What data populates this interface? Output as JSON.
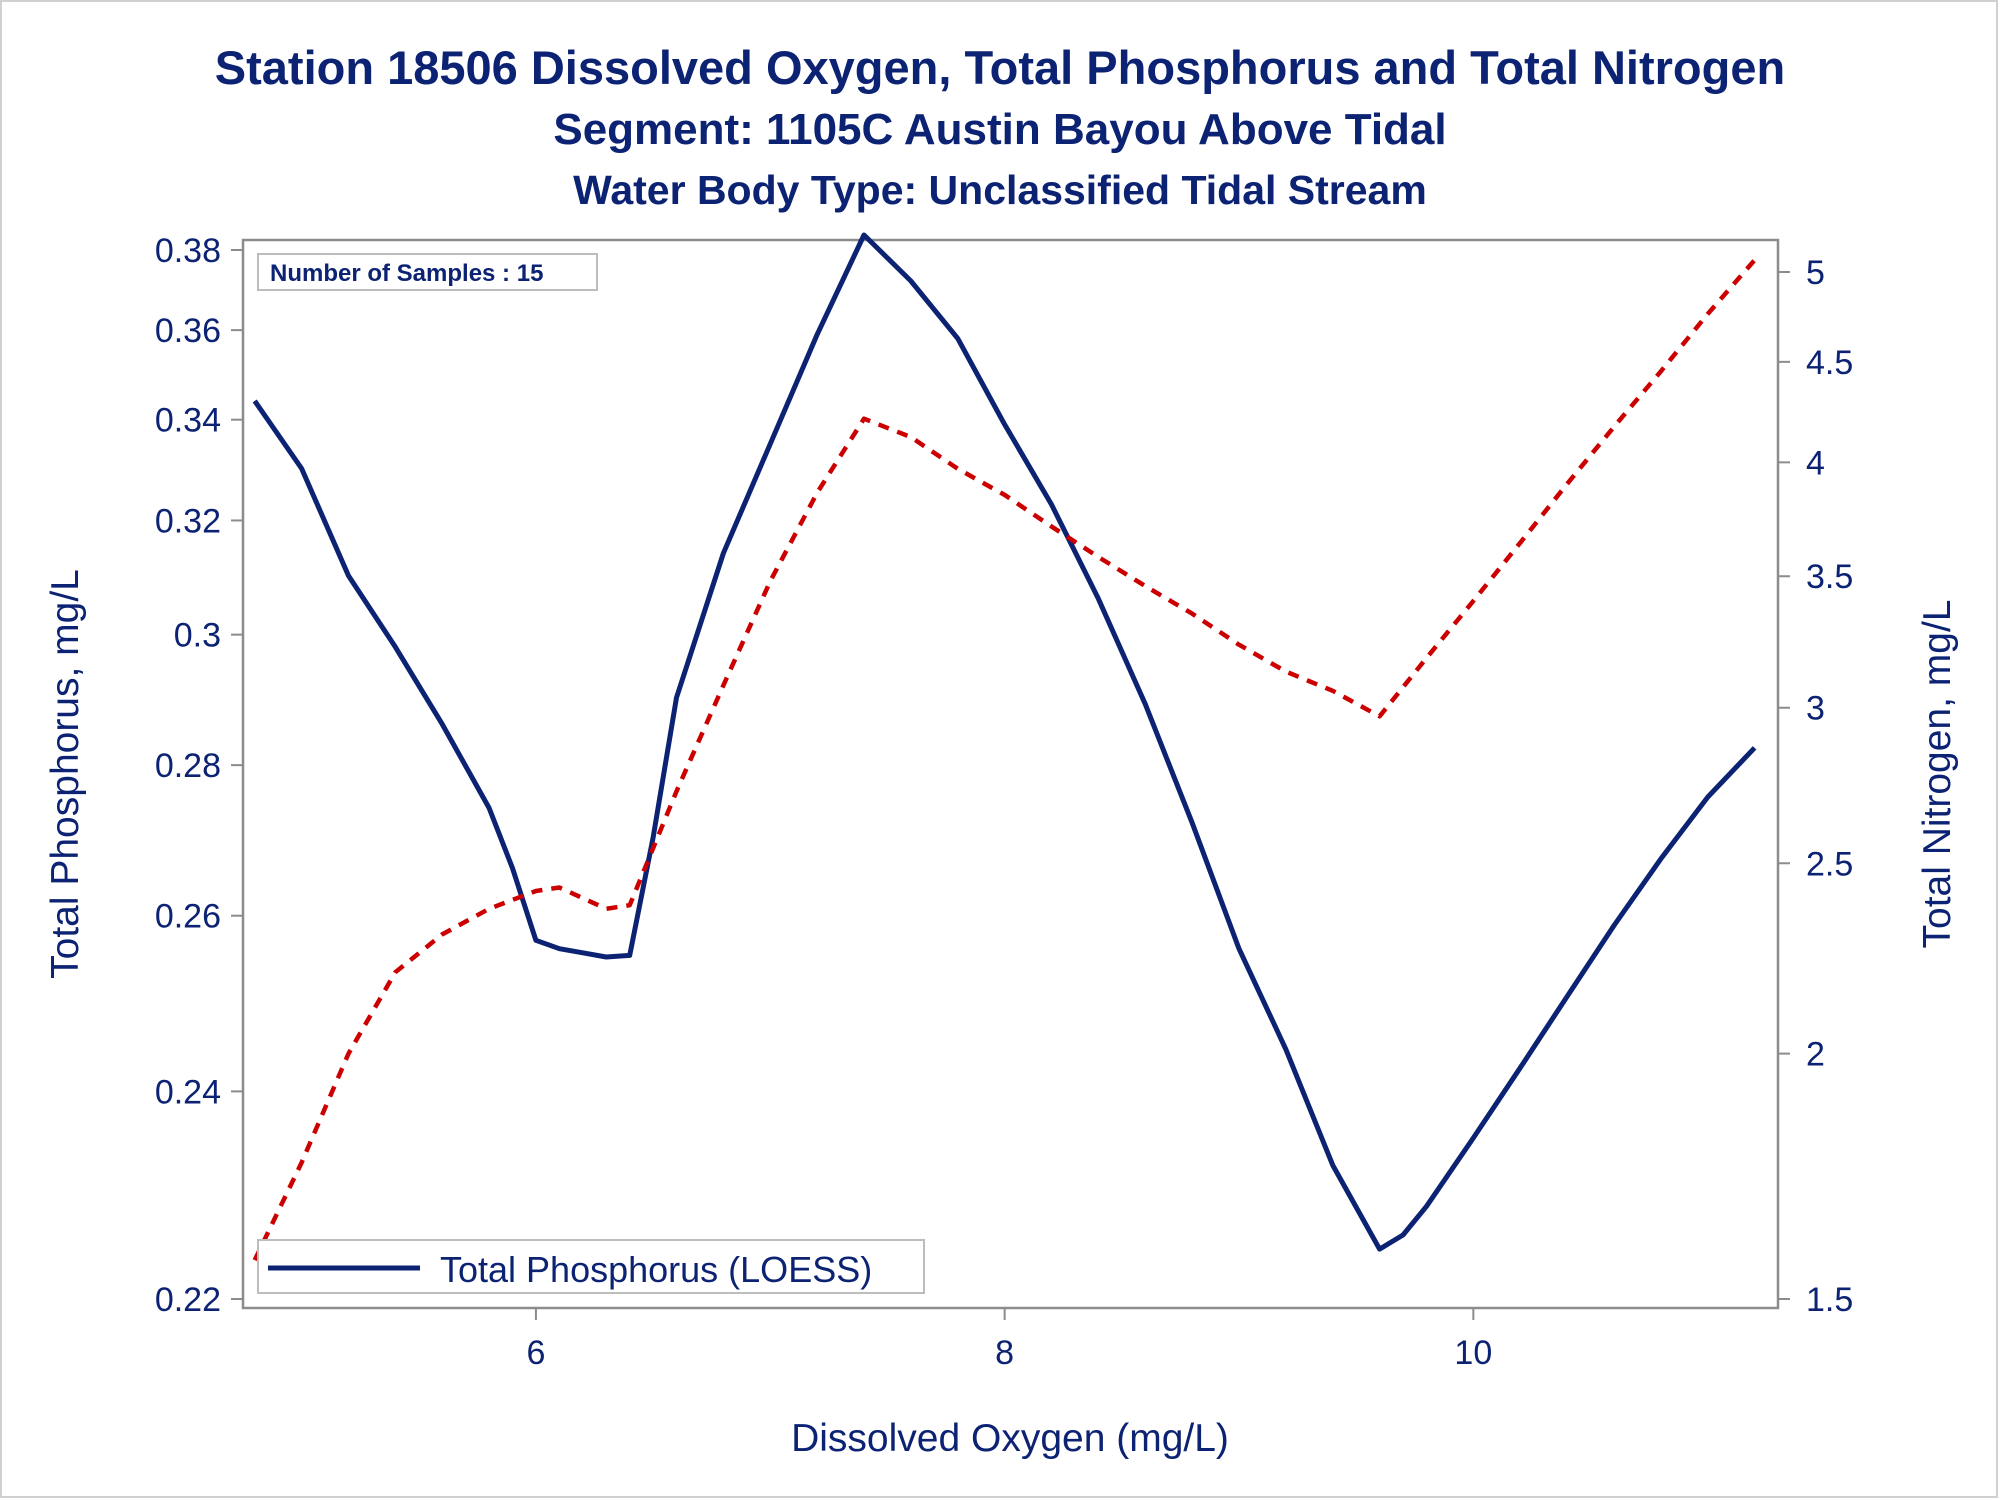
{
  "titles": {
    "line1": "Station 18506  Dissolved Oxygen, Total Phosphorus and Total Nitrogen",
    "line2": "Segment: 1105C  Austin Bayou Above Tidal",
    "line3": "Water Body Type: Unclassified Tidal Stream"
  },
  "annotation": "Number of Samples : 15",
  "legend": {
    "label": "Total Phosphorus (LOESS)"
  },
  "colors": {
    "phosphorus": "#0c2273",
    "nitrogen": "#cc0000",
    "text": "#0c2273",
    "axis": "#8c8c8c"
  },
  "chart_data": {
    "type": "line",
    "xlabel": "Dissolved Oxygen (mg/L)",
    "ylabel": "Total Phosphorus, mg/L",
    "y2label": "Total Nitrogen, mg/L",
    "xlim": [
      4.75,
      11.3
    ],
    "ylim": [
      0.22,
      0.385
    ],
    "y2lim": [
      1.5,
      5.1
    ],
    "y2scale": "log",
    "x_ticks": [
      "6",
      "8",
      "10"
    ],
    "y_ticks": [
      "0.22",
      "0.24",
      "0.26",
      "0.28",
      "0.3",
      "0.32",
      "0.34",
      "0.36",
      "0.38"
    ],
    "y2_ticks": [
      "1.5",
      "2",
      "2.5",
      "3",
      "3.5",
      "4",
      "4.5",
      "5"
    ],
    "legend_position": "bottom-left",
    "grid": false,
    "series": [
      {
        "name": "Total Phosphorus (LOESS)",
        "axis": "left",
        "style": "solid",
        "x": [
          4.8,
          5.0,
          5.2,
          5.4,
          5.6,
          5.8,
          5.9,
          6.0,
          6.1,
          6.2,
          6.3,
          6.4,
          6.5,
          6.6,
          6.8,
          7.0,
          7.2,
          7.4,
          7.6,
          7.8,
          8.0,
          8.2,
          8.4,
          8.6,
          8.8,
          9.0,
          9.2,
          9.4,
          9.6,
          9.7,
          9.8,
          10.0,
          10.2,
          10.4,
          10.6,
          10.8,
          11.0,
          11.2
        ],
        "y": [
          0.344,
          0.33,
          0.31,
          0.298,
          0.286,
          0.274,
          0.266,
          0.257,
          0.256,
          0.2555,
          0.255,
          0.2552,
          0.27,
          0.29,
          0.314,
          0.335,
          0.359,
          0.384,
          0.372,
          0.358,
          0.339,
          0.323,
          0.306,
          0.289,
          0.272,
          0.256,
          0.2445,
          0.2325,
          0.2245,
          0.2258,
          0.2285,
          0.2352,
          0.2425,
          0.2504,
          0.2588,
          0.2672,
          0.2755,
          0.2825
        ]
      },
      {
        "name": "",
        "axis": "right",
        "style": "dashed",
        "x": [
          4.8,
          5.0,
          5.2,
          5.4,
          5.6,
          5.8,
          6.0,
          6.1,
          6.3,
          6.4,
          6.6,
          6.8,
          7.0,
          7.2,
          7.4,
          7.6,
          7.8,
          8.0,
          8.2,
          8.4,
          8.6,
          8.8,
          9.0,
          9.2,
          9.4,
          9.6,
          9.8,
          10.0,
          10.2,
          10.4,
          10.6,
          10.8,
          11.0,
          11.2
        ],
        "y": [
          1.57,
          1.76,
          2.0,
          2.2,
          2.3,
          2.37,
          2.42,
          2.43,
          2.37,
          2.38,
          2.72,
          3.08,
          3.48,
          3.86,
          4.21,
          4.12,
          3.97,
          3.85,
          3.71,
          3.58,
          3.46,
          3.35,
          3.23,
          3.13,
          3.06,
          2.97,
          3.18,
          3.4,
          3.64,
          3.9,
          4.17,
          4.45,
          4.76,
          5.07
        ]
      }
    ]
  }
}
